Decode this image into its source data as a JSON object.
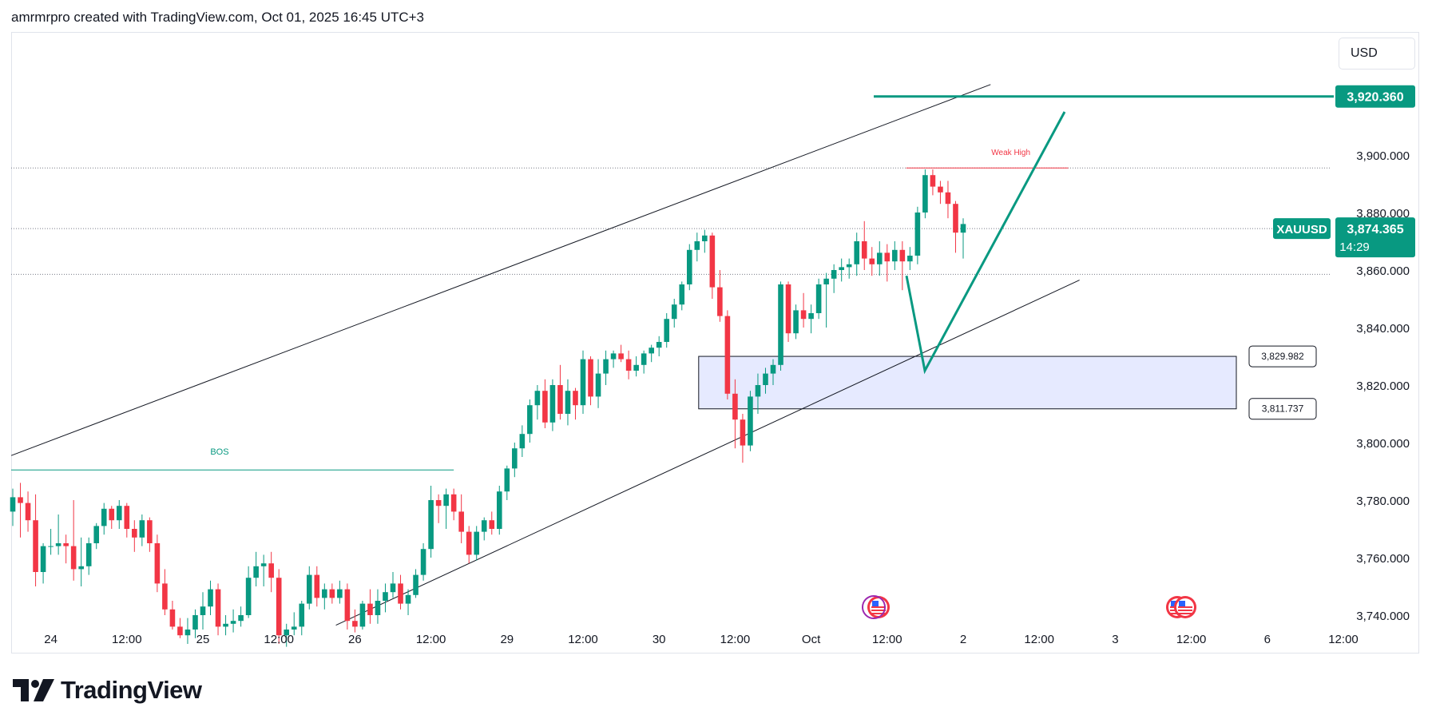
{
  "header": {
    "text": "amrmrpro created with TradingView.com, Oct 01, 2025 16:45 UTC+3"
  },
  "currency_button": {
    "label": "USD"
  },
  "logo": {
    "text": "TradingView"
  },
  "chart_data": {
    "type": "candlestick",
    "symbol": "XAUUSD",
    "current_price": "3,874.365",
    "countdown": "14:29",
    "target_label": "3,920.360",
    "y_ticks": [
      "3,900.000",
      "3,880.000",
      "3,860.000",
      "3,840.000",
      "3,820.000",
      "3,800.000",
      "3,780.000",
      "3,760.000",
      "3,740.000"
    ],
    "y_tick_values": [
      3900,
      3880,
      3860,
      3840,
      3820,
      3800,
      3780,
      3760,
      3740
    ],
    "x_ticks": [
      "24",
      "12:00",
      "25",
      "12:00",
      "26",
      "12:00",
      "29",
      "12:00",
      "30",
      "12:00",
      "Oct",
      "12:00",
      "2",
      "12:00",
      "3",
      "12:00",
      "6",
      "12:00"
    ],
    "x_tick_bars": [
      5,
      15,
      25,
      35,
      45,
      55,
      65,
      75,
      85,
      95,
      105,
      115,
      125,
      135,
      145,
      155,
      165,
      175
    ],
    "ylim": [
      3733,
      3935
    ],
    "annotations": {
      "bos_label": "BOS",
      "bos_price": 3790.5,
      "weak_high_label": "Weak High",
      "weak_high_price": 3895.5,
      "zone_top": 3829.982,
      "zone_bottom": 3811.737,
      "zone_top_label": "3,829.982",
      "zone_bottom_label": "3,811.737",
      "target_price": 3920.36,
      "dotted_levels": [
        3895.5,
        3874.4,
        3858.5
      ]
    },
    "colors": {
      "up": "#089981",
      "down": "#f23645",
      "zone_fill": "#e3e8ff",
      "accent": "#089981",
      "weak_high": "#f23645"
    },
    "candles": [
      [
        3776,
        3784,
        3771,
        3781
      ],
      [
        3781,
        3786,
        3767,
        3779
      ],
      [
        3779,
        3783,
        3769,
        3773
      ],
      [
        3773,
        3782,
        3750,
        3755
      ],
      [
        3755,
        3765,
        3751,
        3764
      ],
      [
        3764,
        3770,
        3761,
        3764
      ],
      [
        3764,
        3775,
        3761,
        3765
      ],
      [
        3765,
        3768,
        3758,
        3764
      ],
      [
        3764,
        3780,
        3752,
        3756
      ],
      [
        3756,
        3767,
        3750,
        3757
      ],
      [
        3757,
        3767,
        3754,
        3765
      ],
      [
        3765,
        3772,
        3763,
        3771
      ],
      [
        3771,
        3779,
        3768,
        3777
      ],
      [
        3777,
        3778,
        3770,
        3773
      ],
      [
        3773,
        3780,
        3770,
        3778
      ],
      [
        3778,
        3779,
        3767,
        3770
      ],
      [
        3770,
        3773,
        3762,
        3767
      ],
      [
        3767,
        3775,
        3764,
        3773
      ],
      [
        3773,
        3774,
        3762,
        3765
      ],
      [
        3765,
        3768,
        3748,
        3751
      ],
      [
        3751,
        3756,
        3740,
        3742
      ],
      [
        3742,
        3745,
        3735,
        3736
      ],
      [
        3736,
        3739,
        3732,
        3733
      ],
      [
        3733,
        3739,
        3730,
        3735
      ],
      [
        3735,
        3742,
        3732,
        3740
      ],
      [
        3740,
        3748,
        3735,
        3743
      ],
      [
        3743,
        3752,
        3740,
        3749
      ],
      [
        3749,
        3751,
        3733,
        3736
      ],
      [
        3736,
        3740,
        3733,
        3737
      ],
      [
        3737,
        3742,
        3734,
        3738
      ],
      [
        3738,
        3743,
        3736,
        3740
      ],
      [
        3740,
        3757,
        3739,
        3753
      ],
      [
        3753,
        3762,
        3750,
        3757
      ],
      [
        3757,
        3761,
        3750,
        3758
      ],
      [
        3758,
        3762,
        3748,
        3753
      ],
      [
        3753,
        3756,
        3730,
        3733
      ],
      [
        3733,
        3737,
        3729,
        3735
      ],
      [
        3735,
        3741,
        3733,
        3736
      ],
      [
        3736,
        3745,
        3733,
        3744
      ],
      [
        3744,
        3757,
        3742,
        3754
      ],
      [
        3754,
        3757,
        3743,
        3746
      ],
      [
        3746,
        3751,
        3742,
        3749
      ],
      [
        3749,
        3751,
        3744,
        3746
      ],
      [
        3746,
        3752,
        3744,
        3749
      ],
      [
        3749,
        3751,
        3735,
        3738
      ],
      [
        3738,
        3742,
        3734,
        3736
      ],
      [
        3736,
        3745,
        3735,
        3744
      ],
      [
        3744,
        3749,
        3737,
        3740
      ],
      [
        3740,
        3749,
        3737,
        3745
      ],
      [
        3745,
        3751,
        3741,
        3748
      ],
      [
        3748,
        3755,
        3746,
        3751
      ],
      [
        3751,
        3754,
        3742,
        3744
      ],
      [
        3744,
        3749,
        3740,
        3747
      ],
      [
        3747,
        3756,
        3746,
        3754
      ],
      [
        3754,
        3765,
        3752,
        3763
      ],
      [
        3763,
        3785,
        3760,
        3780
      ],
      [
        3780,
        3782,
        3772,
        3778
      ],
      [
        3778,
        3784,
        3770,
        3782
      ],
      [
        3782,
        3784,
        3773,
        3776
      ],
      [
        3776,
        3782,
        3765,
        3769
      ],
      [
        3769,
        3771,
        3758,
        3761
      ],
      [
        3761,
        3771,
        3759,
        3769
      ],
      [
        3769,
        3774,
        3766,
        3773
      ],
      [
        3773,
        3776,
        3768,
        3770
      ],
      [
        3770,
        3785,
        3768,
        3783
      ],
      [
        3783,
        3792,
        3780,
        3791
      ],
      [
        3791,
        3800,
        3788,
        3798
      ],
      [
        3798,
        3806,
        3795,
        3803
      ],
      [
        3803,
        3815,
        3800,
        3813
      ],
      [
        3813,
        3820,
        3808,
        3818
      ],
      [
        3818,
        3822,
        3805,
        3807
      ],
      [
        3807,
        3822,
        3804,
        3820
      ],
      [
        3820,
        3827,
        3808,
        3810
      ],
      [
        3810,
        3822,
        3806,
        3818
      ],
      [
        3818,
        3819,
        3808,
        3813
      ],
      [
        3813,
        3832,
        3810,
        3829
      ],
      [
        3829,
        3830,
        3813,
        3816
      ],
      [
        3816,
        3829,
        3812,
        3824
      ],
      [
        3824,
        3832,
        3820,
        3829
      ],
      [
        3829,
        3832,
        3826,
        3831
      ],
      [
        3831,
        3834,
        3828,
        3829
      ],
      [
        3829,
        3832,
        3822,
        3825
      ],
      [
        3825,
        3830,
        3823,
        3827
      ],
      [
        3827,
        3832,
        3824,
        3831
      ],
      [
        3831,
        3834,
        3828,
        3833
      ],
      [
        3833,
        3837,
        3830,
        3835
      ],
      [
        3835,
        3845,
        3833,
        3843
      ],
      [
        3843,
        3850,
        3840,
        3848
      ],
      [
        3848,
        3856,
        3846,
        3855
      ],
      [
        3855,
        3869,
        3853,
        3867
      ],
      [
        3867,
        3873,
        3863,
        3870
      ],
      [
        3870,
        3874,
        3866,
        3872
      ],
      [
        3872,
        3873,
        3850,
        3854
      ],
      [
        3854,
        3860,
        3842,
        3844
      ],
      [
        3844,
        3846,
        3815,
        3817
      ],
      [
        3817,
        3822,
        3798,
        3808
      ],
      [
        3808,
        3810,
        3793,
        3799
      ],
      [
        3799,
        3818,
        3797,
        3816
      ],
      [
        3816,
        3824,
        3810,
        3820
      ],
      [
        3820,
        3826,
        3817,
        3824
      ],
      [
        3824,
        3829,
        3820,
        3827
      ],
      [
        3827,
        3856,
        3825,
        3855
      ],
      [
        3855,
        3856,
        3835,
        3838
      ],
      [
        3838,
        3848,
        3836,
        3846
      ],
      [
        3846,
        3852,
        3840,
        3843
      ],
      [
        3843,
        3848,
        3838,
        3845
      ],
      [
        3845,
        3857,
        3843,
        3855
      ],
      [
        3855,
        3859,
        3840,
        3857
      ],
      [
        3857,
        3862,
        3852,
        3860
      ],
      [
        3860,
        3864,
        3856,
        3861
      ],
      [
        3861,
        3864,
        3857,
        3862
      ],
      [
        3862,
        3873,
        3858,
        3870
      ],
      [
        3870,
        3877,
        3860,
        3864
      ],
      [
        3864,
        3868,
        3858,
        3862
      ],
      [
        3862,
        3870,
        3858,
        3866
      ],
      [
        3866,
        3869,
        3856,
        3863
      ],
      [
        3863,
        3870,
        3860,
        3867
      ],
      [
        3867,
        3870,
        3853,
        3863
      ],
      [
        3863,
        3868,
        3860,
        3865
      ],
      [
        3865,
        3882,
        3862,
        3880
      ],
      [
        3880,
        3895,
        3878,
        3893
      ],
      [
        3893,
        3895,
        3886,
        3889
      ],
      [
        3889,
        3891,
        3883,
        3887
      ],
      [
        3887,
        3891,
        3878,
        3883
      ],
      [
        3883,
        3884,
        3866,
        3873
      ],
      [
        3873,
        3878,
        3864,
        3876
      ]
    ]
  }
}
